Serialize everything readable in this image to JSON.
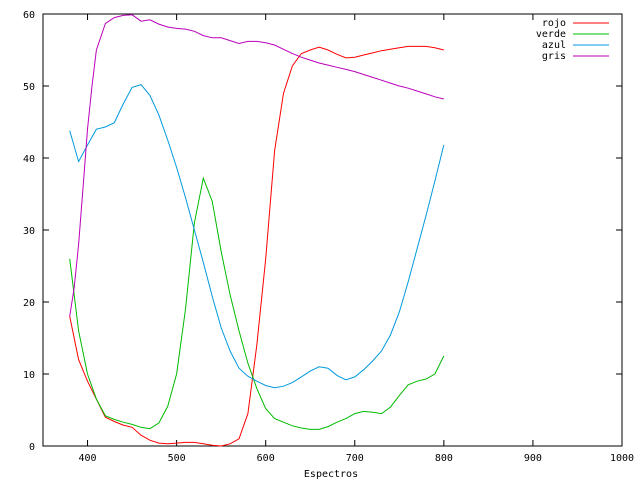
{
  "chart_data": {
    "type": "line",
    "title": "",
    "xlabel": "Espectros",
    "ylabel": "",
    "xlim": [
      350,
      1000
    ],
    "ylim": [
      0,
      60
    ],
    "xticks": [
      400,
      500,
      600,
      700,
      800,
      900,
      1000
    ],
    "yticks": [
      0,
      10,
      20,
      30,
      40,
      50,
      60
    ],
    "grid": false,
    "legend_position": "top-right",
    "series": [
      {
        "name": "rojo",
        "color": "#ff0000",
        "x": [
          380,
          390,
          400,
          410,
          420,
          430,
          440,
          450,
          460,
          470,
          480,
          490,
          500,
          510,
          520,
          530,
          540,
          550,
          560,
          570,
          580,
          590,
          600,
          610,
          620,
          630,
          640,
          650,
          660,
          670,
          680,
          690,
          700,
          710,
          720,
          730,
          740,
          750,
          760,
          770,
          780,
          790,
          800
        ],
        "y": [
          18,
          12,
          9,
          6.5,
          4,
          3.4,
          2.9,
          2.6,
          1.5,
          0.8,
          0.4,
          0.3,
          0.4,
          0.5,
          0.5,
          0.3,
          0.1,
          0.0,
          0.3,
          1,
          4.5,
          14,
          26,
          41,
          49,
          52.8,
          54.5,
          55,
          55.4,
          55,
          54.4,
          53.9,
          54,
          54.3,
          54.6,
          54.9,
          55.1,
          55.3,
          55.5,
          55.5,
          55.5,
          55.3,
          55
        ]
      },
      {
        "name": "verde",
        "color": "#00bb00",
        "x": [
          380,
          390,
          400,
          410,
          420,
          430,
          440,
          450,
          460,
          470,
          480,
          490,
          500,
          510,
          520,
          530,
          540,
          550,
          560,
          570,
          580,
          590,
          600,
          610,
          620,
          630,
          640,
          650,
          660,
          670,
          680,
          690,
          700,
          710,
          720,
          730,
          740,
          750,
          760,
          770,
          780,
          790,
          800
        ],
        "y": [
          26,
          16,
          10,
          6.5,
          4.2,
          3.7,
          3.3,
          3.0,
          2.6,
          2.4,
          3.2,
          5.5,
          10,
          19,
          31,
          37.2,
          34,
          27,
          21,
          16,
          11.5,
          8,
          5.2,
          3.8,
          3.3,
          2.8,
          2.5,
          2.3,
          2.3,
          2.7,
          3.3,
          3.8,
          4.5,
          4.8,
          4.7,
          4.5,
          5.4,
          7,
          8.5,
          9,
          9.3,
          10,
          12.5
        ]
      },
      {
        "name": "azul",
        "color": "#0099dd",
        "x": [
          380,
          390,
          400,
          410,
          420,
          430,
          440,
          450,
          460,
          470,
          480,
          490,
          500,
          510,
          520,
          530,
          540,
          550,
          560,
          570,
          580,
          590,
          600,
          610,
          620,
          630,
          640,
          650,
          660,
          670,
          680,
          690,
          700,
          710,
          720,
          730,
          740,
          750,
          760,
          770,
          780,
          790,
          800
        ],
        "y": [
          43.8,
          39.5,
          41.8,
          44,
          44.3,
          44.9,
          47.5,
          49.8,
          50.2,
          48.7,
          46,
          42.5,
          38.7,
          34.5,
          30,
          25.5,
          20.8,
          16.4,
          13.2,
          10.8,
          9.7,
          9.0,
          8.4,
          8.1,
          8.3,
          8.8,
          9.6,
          10.4,
          11.0,
          10.8,
          9.8,
          9.2,
          9.6,
          10.6,
          11.8,
          13.2,
          15.4,
          18.6,
          22.8,
          27.4,
          32.0,
          36.8,
          41.8
        ]
      },
      {
        "name": "gris",
        "color": "#bb00bb",
        "x": [
          380,
          385,
          390,
          395,
          400,
          405,
          410,
          420,
          430,
          440,
          450,
          460,
          470,
          480,
          490,
          500,
          510,
          520,
          530,
          540,
          550,
          560,
          570,
          580,
          590,
          600,
          610,
          620,
          630,
          640,
          650,
          660,
          670,
          680,
          690,
          700,
          710,
          720,
          730,
          740,
          750,
          760,
          770,
          780,
          790,
          800
        ],
        "y": [
          18,
          22,
          28,
          36,
          44,
          50,
          55,
          58.7,
          59.5,
          59.8,
          59.9,
          59.0,
          59.2,
          58.6,
          58.2,
          58.0,
          57.9,
          57.6,
          57.0,
          56.7,
          56.7,
          56.3,
          55.9,
          56.2,
          56.2,
          56.0,
          55.7,
          55.1,
          54.5,
          54.0,
          53.6,
          53.2,
          52.9,
          52.6,
          52.3,
          52.0,
          51.6,
          51.2,
          50.8,
          50.4,
          50.0,
          49.7,
          49.3,
          48.9,
          48.5,
          48.2
        ]
      }
    ]
  }
}
